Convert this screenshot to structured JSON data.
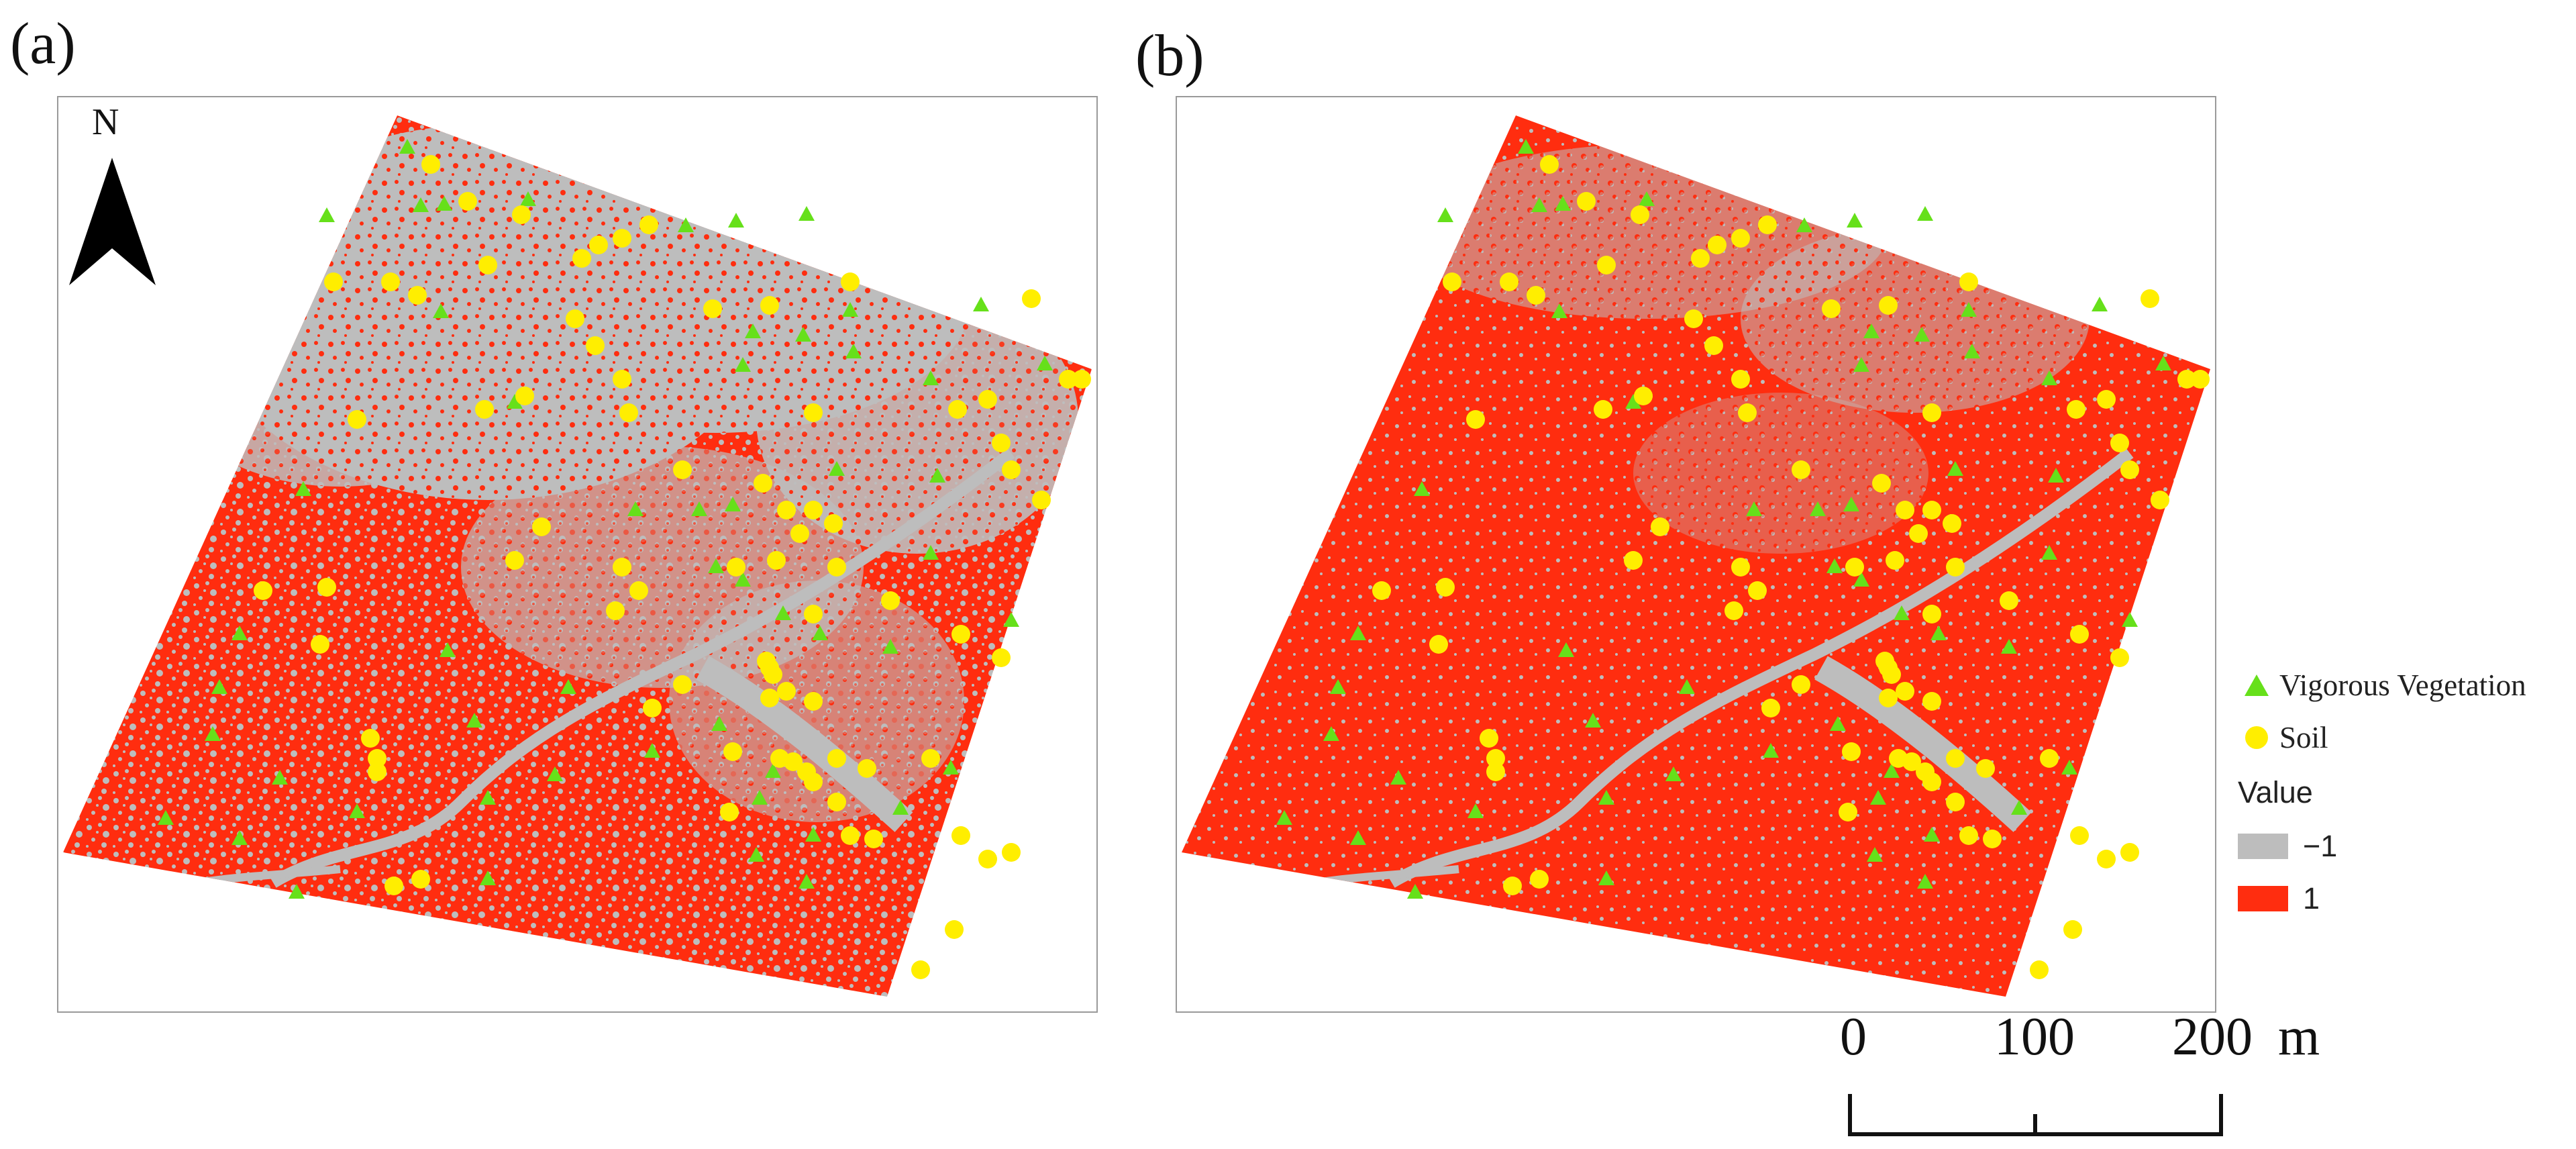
{
  "panels": [
    {
      "label": "(a)"
    },
    {
      "label": "(b)"
    }
  ],
  "north_arrow": {
    "label": "N"
  },
  "legend": {
    "vegetation_label": "Vigorous Vegetation",
    "soil_label": "Soil",
    "value_title": "Value",
    "classes": [
      {
        "label": "−1",
        "color": "#bdbdbd"
      },
      {
        "label": "1",
        "color": "#ff2d0f"
      }
    ]
  },
  "scale_bar": {
    "ticks": [
      "0",
      "100",
      "200"
    ],
    "unit": "m"
  },
  "colors": {
    "vegetation": "#66e01a",
    "soil": "#ffee00",
    "negative_class": "#bdbdbd",
    "positive_class": "#ff2d0f"
  }
}
